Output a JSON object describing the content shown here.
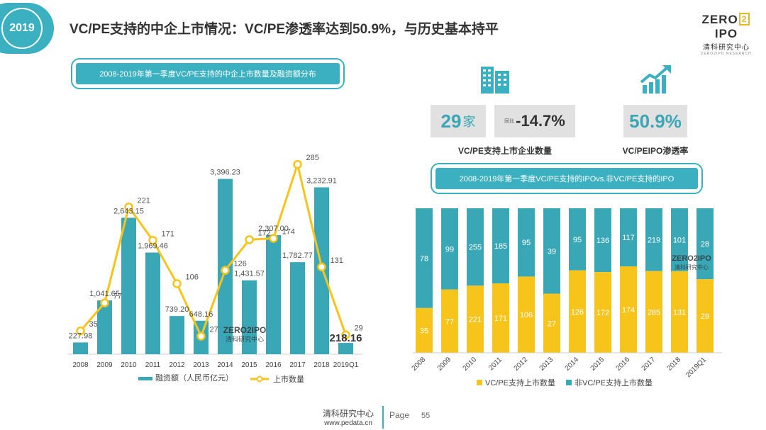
{
  "header": {
    "year": "2019",
    "title": "VC/PE支持的中企上市情况：VC/PE渗透率达到50.9%，与历史基本持平",
    "logo": {
      "main_left": "ZERO",
      "main_box": "2",
      "main_right": "IPO",
      "sub": "清科研究中心",
      "tiny": "ZERO2IPO RESEARCH"
    }
  },
  "left_caption": "2008-2019年第一季度VC/PE支持的中企上市数量及融资额分布",
  "right_caption": "2008-2019年第一季度VC/PE支持的IPOvs.非VC/PE支持的IPO",
  "kpis": {
    "count_value": "29",
    "count_unit": "家",
    "yoy_prefix": "同比",
    "yoy_value": "-14.7%",
    "count_label": "VC/PE支持上市企业数量",
    "penetration_value": "50.9%",
    "penetration_label": "VC/PEIPO渗透率"
  },
  "watermark": {
    "main": "ZERO2IPO",
    "sub": "清科研究中心"
  },
  "footer": {
    "org": "清科研究中心",
    "url": "www.pedata.cn",
    "page_label": "Page",
    "page_number": "55"
  },
  "colors": {
    "teal": "#3aa7b7",
    "gold": "#f6c41b",
    "accent": "#3bb0c0",
    "kpi_bg": "#e1e1e1"
  },
  "icons": {
    "building": "building-icon",
    "growth": "growth-chart-icon"
  },
  "chart_data": [
    {
      "type": "bar+line",
      "categories": [
        "2008",
        "2009",
        "2010",
        "2011",
        "2012",
        "2013",
        "2014",
        "2015",
        "2016",
        "2017",
        "2018",
        "2019Q1"
      ],
      "series": [
        {
          "name": "融资额（人民币亿元）",
          "kind": "bar",
          "axis": "left",
          "values": [
            227.98,
            1041.65,
            2643.15,
            1969.46,
            739.2,
            648.16,
            3396.23,
            1431.57,
            2307.0,
            1782.77,
            3232.91,
            218.16
          ],
          "labels": [
            "227.98",
            "1,041.65",
            "2,643.15",
            "1,969.46",
            "739.20",
            "648.16",
            "3,396.23",
            "1,431.57",
            "2,307.00",
            "1,782.77",
            "3,232.91",
            "218.16"
          ]
        },
        {
          "name": "上市数量",
          "kind": "line",
          "axis": "right",
          "values": [
            35,
            77,
            221,
            171,
            106,
            27,
            126,
            172,
            174,
            285,
            131,
            29
          ],
          "labels": [
            "35",
            "77",
            "221",
            "171",
            "106",
            "27",
            "126",
            "172",
            "174",
            "285",
            "131",
            "29"
          ]
        }
      ],
      "legend_position": "bottom",
      "grid": false
    },
    {
      "type": "bar",
      "stacked": true,
      "normalized": true,
      "categories": [
        "2008",
        "2009",
        "2010",
        "2011",
        "2012",
        "2013",
        "2014",
        "2015",
        "2016",
        "2017",
        "2018",
        "2019Q1"
      ],
      "series": [
        {
          "name": "VC/PE支持上市数量",
          "values": [
            35,
            77,
            221,
            171,
            106,
            27,
            126,
            172,
            174,
            285,
            131,
            29
          ]
        },
        {
          "name": "非VC/PE支持上市数量",
          "values": [
            78,
            99,
            255,
            185,
            95,
            39,
            95,
            136,
            117,
            219,
            101,
            28
          ]
        }
      ],
      "legend_position": "bottom",
      "grid": false
    }
  ]
}
